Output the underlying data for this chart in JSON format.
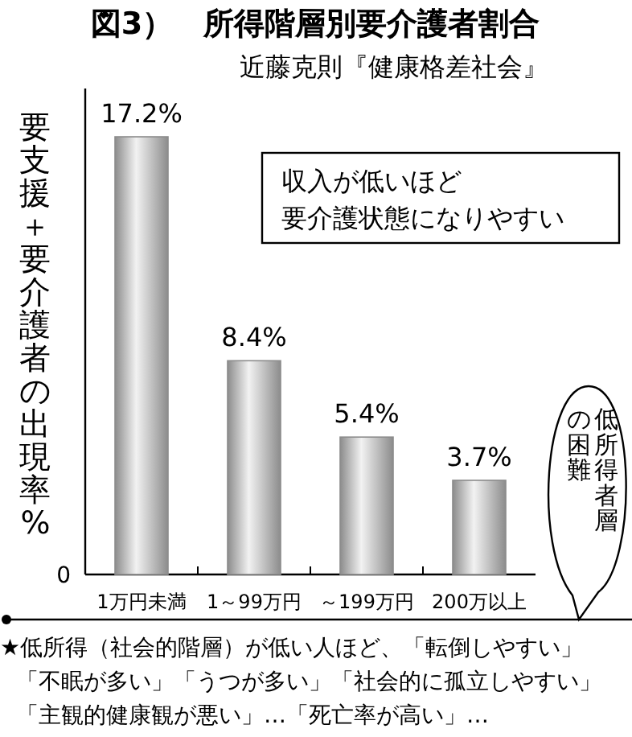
{
  "chart_data": {
    "type": "bar",
    "title": "図3）　所得階層別要介護者割合",
    "subtitle": "近藤克則『健康格差社会』",
    "ylabel": "要支援＋要介護者の出現率%",
    "categories": [
      "1万円未満",
      "1～99万円",
      "～199万円",
      "200万以上"
    ],
    "values": [
      17.2,
      8.4,
      5.4,
      3.7
    ],
    "value_labels": [
      "17.2%",
      "8.4%",
      "5.4%",
      "3.7%"
    ],
    "color": "#8c8c8c",
    "annotations": [
      "収入が低いほど",
      "要介護状態になりやすい",
      "低所得者層",
      "の困難",
      "★低所得（社会的階層）が低い人ほど、「転倒しやすい」",
      "「不眠が多い」「うつが多い」「社会的に孤立しやすい」",
      "「主観的健康観が悪い」…「死亡率が高い」…",
      "0"
    ]
  }
}
